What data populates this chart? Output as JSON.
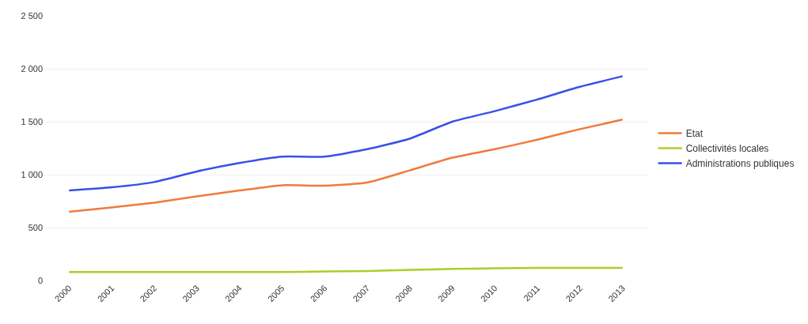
{
  "chart_data": {
    "type": "line",
    "categories": [
      "2000",
      "2001",
      "2002",
      "2003",
      "2004",
      "2005",
      "2006",
      "2007",
      "2008",
      "2009",
      "2010",
      "2011",
      "2012",
      "2013"
    ],
    "series": [
      {
        "name": "Etat",
        "color": "#f07a3a",
        "values": [
          650,
          690,
          735,
          795,
          850,
          900,
          895,
          925,
          1040,
          1160,
          1240,
          1330,
          1430,
          1520
        ]
      },
      {
        "name": "Collectivités locales",
        "color": "#a8cf2a",
        "values": [
          80,
          80,
          80,
          80,
          80,
          80,
          85,
          90,
          100,
          110,
          115,
          120,
          120,
          120
        ]
      },
      {
        "name": "Administrations publiques",
        "color": "#3a4fe8",
        "values": [
          850,
          880,
          930,
          1030,
          1110,
          1170,
          1170,
          1240,
          1340,
          1500,
          1600,
          1710,
          1830,
          1930
        ]
      }
    ],
    "ylim": [
      0,
      2500
    ],
    "yticks": [
      0,
      500,
      {
        "value": 1000,
        "label": "1 000"
      },
      {
        "value": 1500,
        "label": "1 500"
      },
      {
        "value": 2000,
        "label": "2 000"
      },
      {
        "value": 2500,
        "label": "2 500"
      }
    ],
    "grid": "y",
    "legend": "right",
    "marker": "none",
    "line_style": "solid"
  }
}
